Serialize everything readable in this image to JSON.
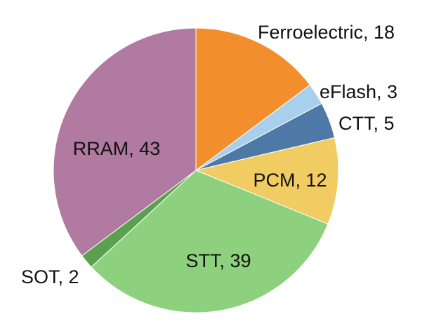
{
  "chart_data": {
    "type": "pie",
    "title": "",
    "legend": "none",
    "slices": [
      {
        "label": "Ferroelectric",
        "value": 18,
        "color": "#F28E2B",
        "text": "Ferroelectric, 18"
      },
      {
        "label": "eFlash",
        "value": 3,
        "color": "#A8CFEB",
        "text": "eFlash, 3"
      },
      {
        "label": "CTT",
        "value": 5,
        "color": "#4E79A7",
        "text": "CTT, 5"
      },
      {
        "label": "PCM",
        "value": 12,
        "color": "#F0CC63",
        "text": "PCM, 12"
      },
      {
        "label": "STT",
        "value": 39,
        "color": "#8DD17E",
        "text": "STT, 39"
      },
      {
        "label": "SOT",
        "value": 2,
        "color": "#59A14F",
        "text": "SOT, 2"
      },
      {
        "label": "RRAM",
        "value": 43,
        "color": "#B07AA1",
        "text": "RRAM, 43"
      }
    ]
  }
}
